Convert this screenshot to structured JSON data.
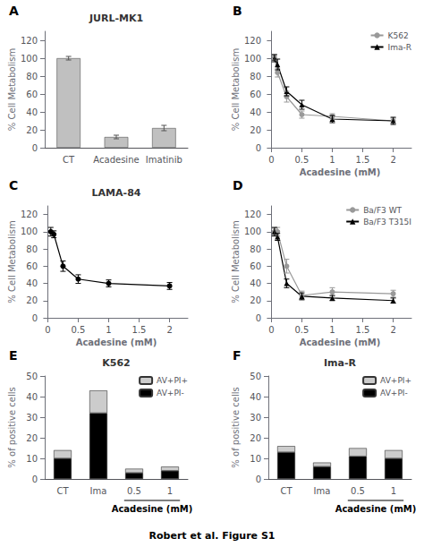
{
  "chart_data": [
    {
      "type": "bar",
      "title": "JURL-MK1",
      "categories": [
        "CT",
        "Acadesine",
        "Imatinib"
      ],
      "values": [
        100,
        12,
        22
      ],
      "errors": [
        2,
        2,
        3
      ],
      "color": "#c0c0c0",
      "ylabel": "% Cell Metabolism",
      "ylim": [
        0,
        130
      ],
      "yticks": [
        0,
        20,
        40,
        60,
        80,
        100,
        120
      ],
      "grid": false,
      "annotations": [
        {
          "text": "A"
        }
      ]
    },
    {
      "type": "line",
      "xlabel": "Acadesine (mM)",
      "ylabel": "% Cell Metabolism",
      "xlim": [
        -0.05,
        2.3
      ],
      "xticks": [
        0,
        0.5,
        1,
        1.5,
        2
      ],
      "ylim": [
        0,
        130
      ],
      "yticks": [
        0,
        20,
        40,
        60,
        80,
        100,
        120
      ],
      "grid": false,
      "legend": "upper right",
      "annotations": [
        {
          "text": "B"
        }
      ],
      "series": [
        {
          "name": "K562",
          "color": "#999999",
          "marker": "circle",
          "line_style": "solid",
          "x": [
            0.05,
            0.1,
            0.25,
            0.5,
            1,
            2
          ],
          "values": [
            101,
            84,
            57,
            37,
            35,
            30
          ],
          "errors": [
            3,
            5,
            6,
            4,
            3,
            3
          ]
        },
        {
          "name": "Ima-R",
          "color": "#000000",
          "marker": "triangle",
          "line_style": "solid",
          "x": [
            0.05,
            0.1,
            0.25,
            0.5,
            1,
            2
          ],
          "values": [
            100,
            93,
            63,
            48,
            32,
            30
          ],
          "errors": [
            4,
            6,
            5,
            5,
            4,
            4
          ]
        }
      ]
    },
    {
      "type": "line",
      "title": "LAMA-84",
      "xlabel": "Acadesine (mM)",
      "ylabel": "% Cell Metabolism",
      "xlim": [
        -0.05,
        2.3
      ],
      "xticks": [
        0,
        0.5,
        1,
        1.5,
        2
      ],
      "ylim": [
        0,
        130
      ],
      "yticks": [
        0,
        20,
        40,
        60,
        80,
        100,
        120
      ],
      "grid": false,
      "annotations": [
        {
          "text": "C"
        }
      ],
      "series": [
        {
          "color": "#000000",
          "marker": "circle",
          "line_style": "solid",
          "x": [
            0.05,
            0.1,
            0.25,
            0.5,
            1,
            2
          ],
          "values": [
            100,
            97,
            60,
            45,
            40,
            37
          ],
          "errors": [
            5,
            4,
            6,
            5,
            4,
            4
          ]
        }
      ]
    },
    {
      "type": "line",
      "xlabel": "Acadesine (mM)",
      "ylabel": "% Cell Metabolism",
      "xlim": [
        -0.05,
        2.3
      ],
      "xticks": [
        0,
        0.5,
        1,
        1.5,
        2
      ],
      "ylim": [
        0,
        130
      ],
      "yticks": [
        0,
        20,
        40,
        60,
        80,
        100,
        120
      ],
      "grid": false,
      "legend": "upper right",
      "annotations": [
        {
          "text": "D"
        }
      ],
      "series": [
        {
          "name": "Ba/F3 WT",
          "color": "#999999",
          "marker": "circle",
          "line_style": "solid",
          "x": [
            0.05,
            0.1,
            0.25,
            0.5,
            1,
            2
          ],
          "values": [
            100,
            100,
            60,
            26,
            30,
            28
          ],
          "errors": [
            4,
            5,
            8,
            5,
            5,
            4
          ]
        },
        {
          "name": "Ba/F3 T315I",
          "color": "#000000",
          "marker": "triangle",
          "line_style": "solid",
          "x": [
            0.05,
            0.1,
            0.25,
            0.5,
            1,
            2
          ],
          "values": [
            100,
            94,
            40,
            25,
            23,
            20
          ],
          "errors": [
            5,
            4,
            5,
            4,
            3,
            3
          ]
        }
      ]
    },
    {
      "type": "bar",
      "stacked": true,
      "title": "K562",
      "categories": [
        "CT",
        "Ima",
        "0.5",
        "1"
      ],
      "series": [
        {
          "name": "AV+PI-",
          "color": "#000000",
          "values": [
            10,
            32,
            3,
            4
          ]
        },
        {
          "name": "AV+PI+",
          "color": "#cccccc",
          "values": [
            4,
            11,
            2,
            2
          ]
        }
      ],
      "ylabel": "% of positive cells",
      "ylim": [
        0,
        50
      ],
      "yticks": [
        0,
        10,
        20,
        30,
        40,
        50
      ],
      "grid": false,
      "legend": "upper right",
      "annotations": [
        {
          "text": "E"
        },
        {
          "text": "Acadesine (mM)",
          "categories": [
            "0.5",
            "1"
          ]
        }
      ]
    },
    {
      "type": "bar",
      "stacked": true,
      "title": "Ima-R",
      "categories": [
        "CT",
        "Ima",
        "0.5",
        "1"
      ],
      "series": [
        {
          "name": "AV+PI-",
          "color": "#000000",
          "values": [
            13,
            6,
            11,
            10
          ]
        },
        {
          "name": "AV+PI+",
          "color": "#cccccc",
          "values": [
            3,
            2,
            4,
            4
          ]
        }
      ],
      "ylabel": "% of positive cells",
      "ylim": [
        0,
        50
      ],
      "yticks": [
        0,
        10,
        20,
        30,
        40,
        50
      ],
      "grid": false,
      "legend": "upper right",
      "annotations": [
        {
          "text": "F"
        },
        {
          "text": "Acadesine (mM)",
          "categories": [
            "0.5",
            "1"
          ]
        }
      ]
    }
  ],
  "annotations": [
    {
      "text": "Robert et al. Figure S1"
    }
  ]
}
